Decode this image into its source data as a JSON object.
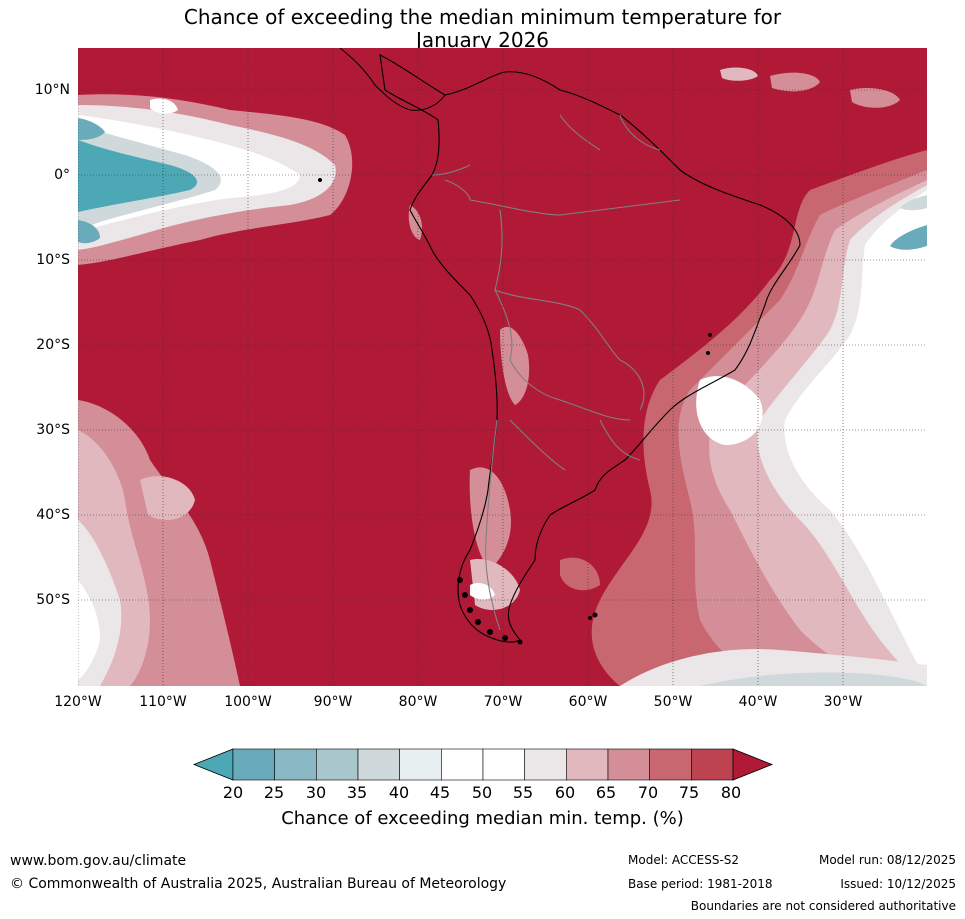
{
  "title": {
    "line1": "Chance of exceeding the median minimum temperature for",
    "line2": "January 2026"
  },
  "map": {
    "latitude_labels": [
      "10°N",
      "0°",
      "10°S",
      "20°S",
      "30°S",
      "40°S",
      "50°S"
    ],
    "longitude_labels": [
      "120°W",
      "110°W",
      "100°W",
      "90°W",
      "80°W",
      "70°W",
      "60°W",
      "50°W",
      "40°W",
      "30°W"
    ],
    "colors": {
      "background_80plus": "#b01a37",
      "land_outline": "#000000",
      "border": "#808080",
      "gridline": "#333333"
    }
  },
  "legend": {
    "ticks": [
      "20",
      "25",
      "30",
      "35",
      "40",
      "45",
      "50",
      "55",
      "60",
      "65",
      "70",
      "75",
      "80"
    ],
    "colors": [
      "#4da8b6",
      "#6aabbb",
      "#8ab8c4",
      "#aac6cd",
      "#cfd8da",
      "#e8eff1",
      "#ffffff",
      "#ffffff",
      "#ebe6e7",
      "#e1b8be",
      "#d48e97",
      "#c8676f",
      "#bd4350",
      "#b01a37"
    ],
    "label": "Chance of exceeding median min. temp. (%)"
  },
  "footer": {
    "url": "www.bom.gov.au/climate",
    "copyright": "© Commonwealth of Australia 2025, Australian Bureau of Meteorology",
    "model": "Model: ACCESS-S2",
    "base_period": "Base period: 1981-2018",
    "model_run": "Model run: 08/12/2025",
    "issued": "Issued: 10/12/2025",
    "boundary_note": "Boundaries are not considered authoritative"
  }
}
